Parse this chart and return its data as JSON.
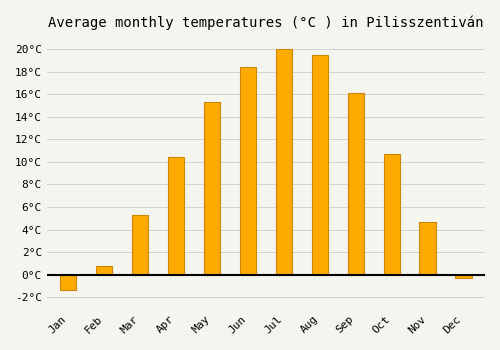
{
  "title": "Average monthly temperatures (°C ) in Pilisszentiván",
  "months": [
    "Jan",
    "Feb",
    "Mar",
    "Apr",
    "May",
    "Jun",
    "Jul",
    "Aug",
    "Sep",
    "Oct",
    "Nov",
    "Dec"
  ],
  "values": [
    -1.3,
    0.8,
    5.3,
    10.4,
    15.3,
    18.4,
    20.0,
    19.5,
    16.1,
    10.7,
    4.7,
    -0.3
  ],
  "bar_color": "#FFAA00",
  "bar_edge_color": "#CC8800",
  "background_color": "#f5f5f0",
  "plot_bg_color": "#f5f5f0",
  "grid_color": "#cccccc",
  "ylim": [
    -3,
    21
  ],
  "yticks": [
    -2,
    0,
    2,
    4,
    6,
    8,
    10,
    12,
    14,
    16,
    18,
    20
  ],
  "title_fontsize": 10,
  "axis_fontsize": 8,
  "font_family": "monospace",
  "bar_width": 0.45
}
